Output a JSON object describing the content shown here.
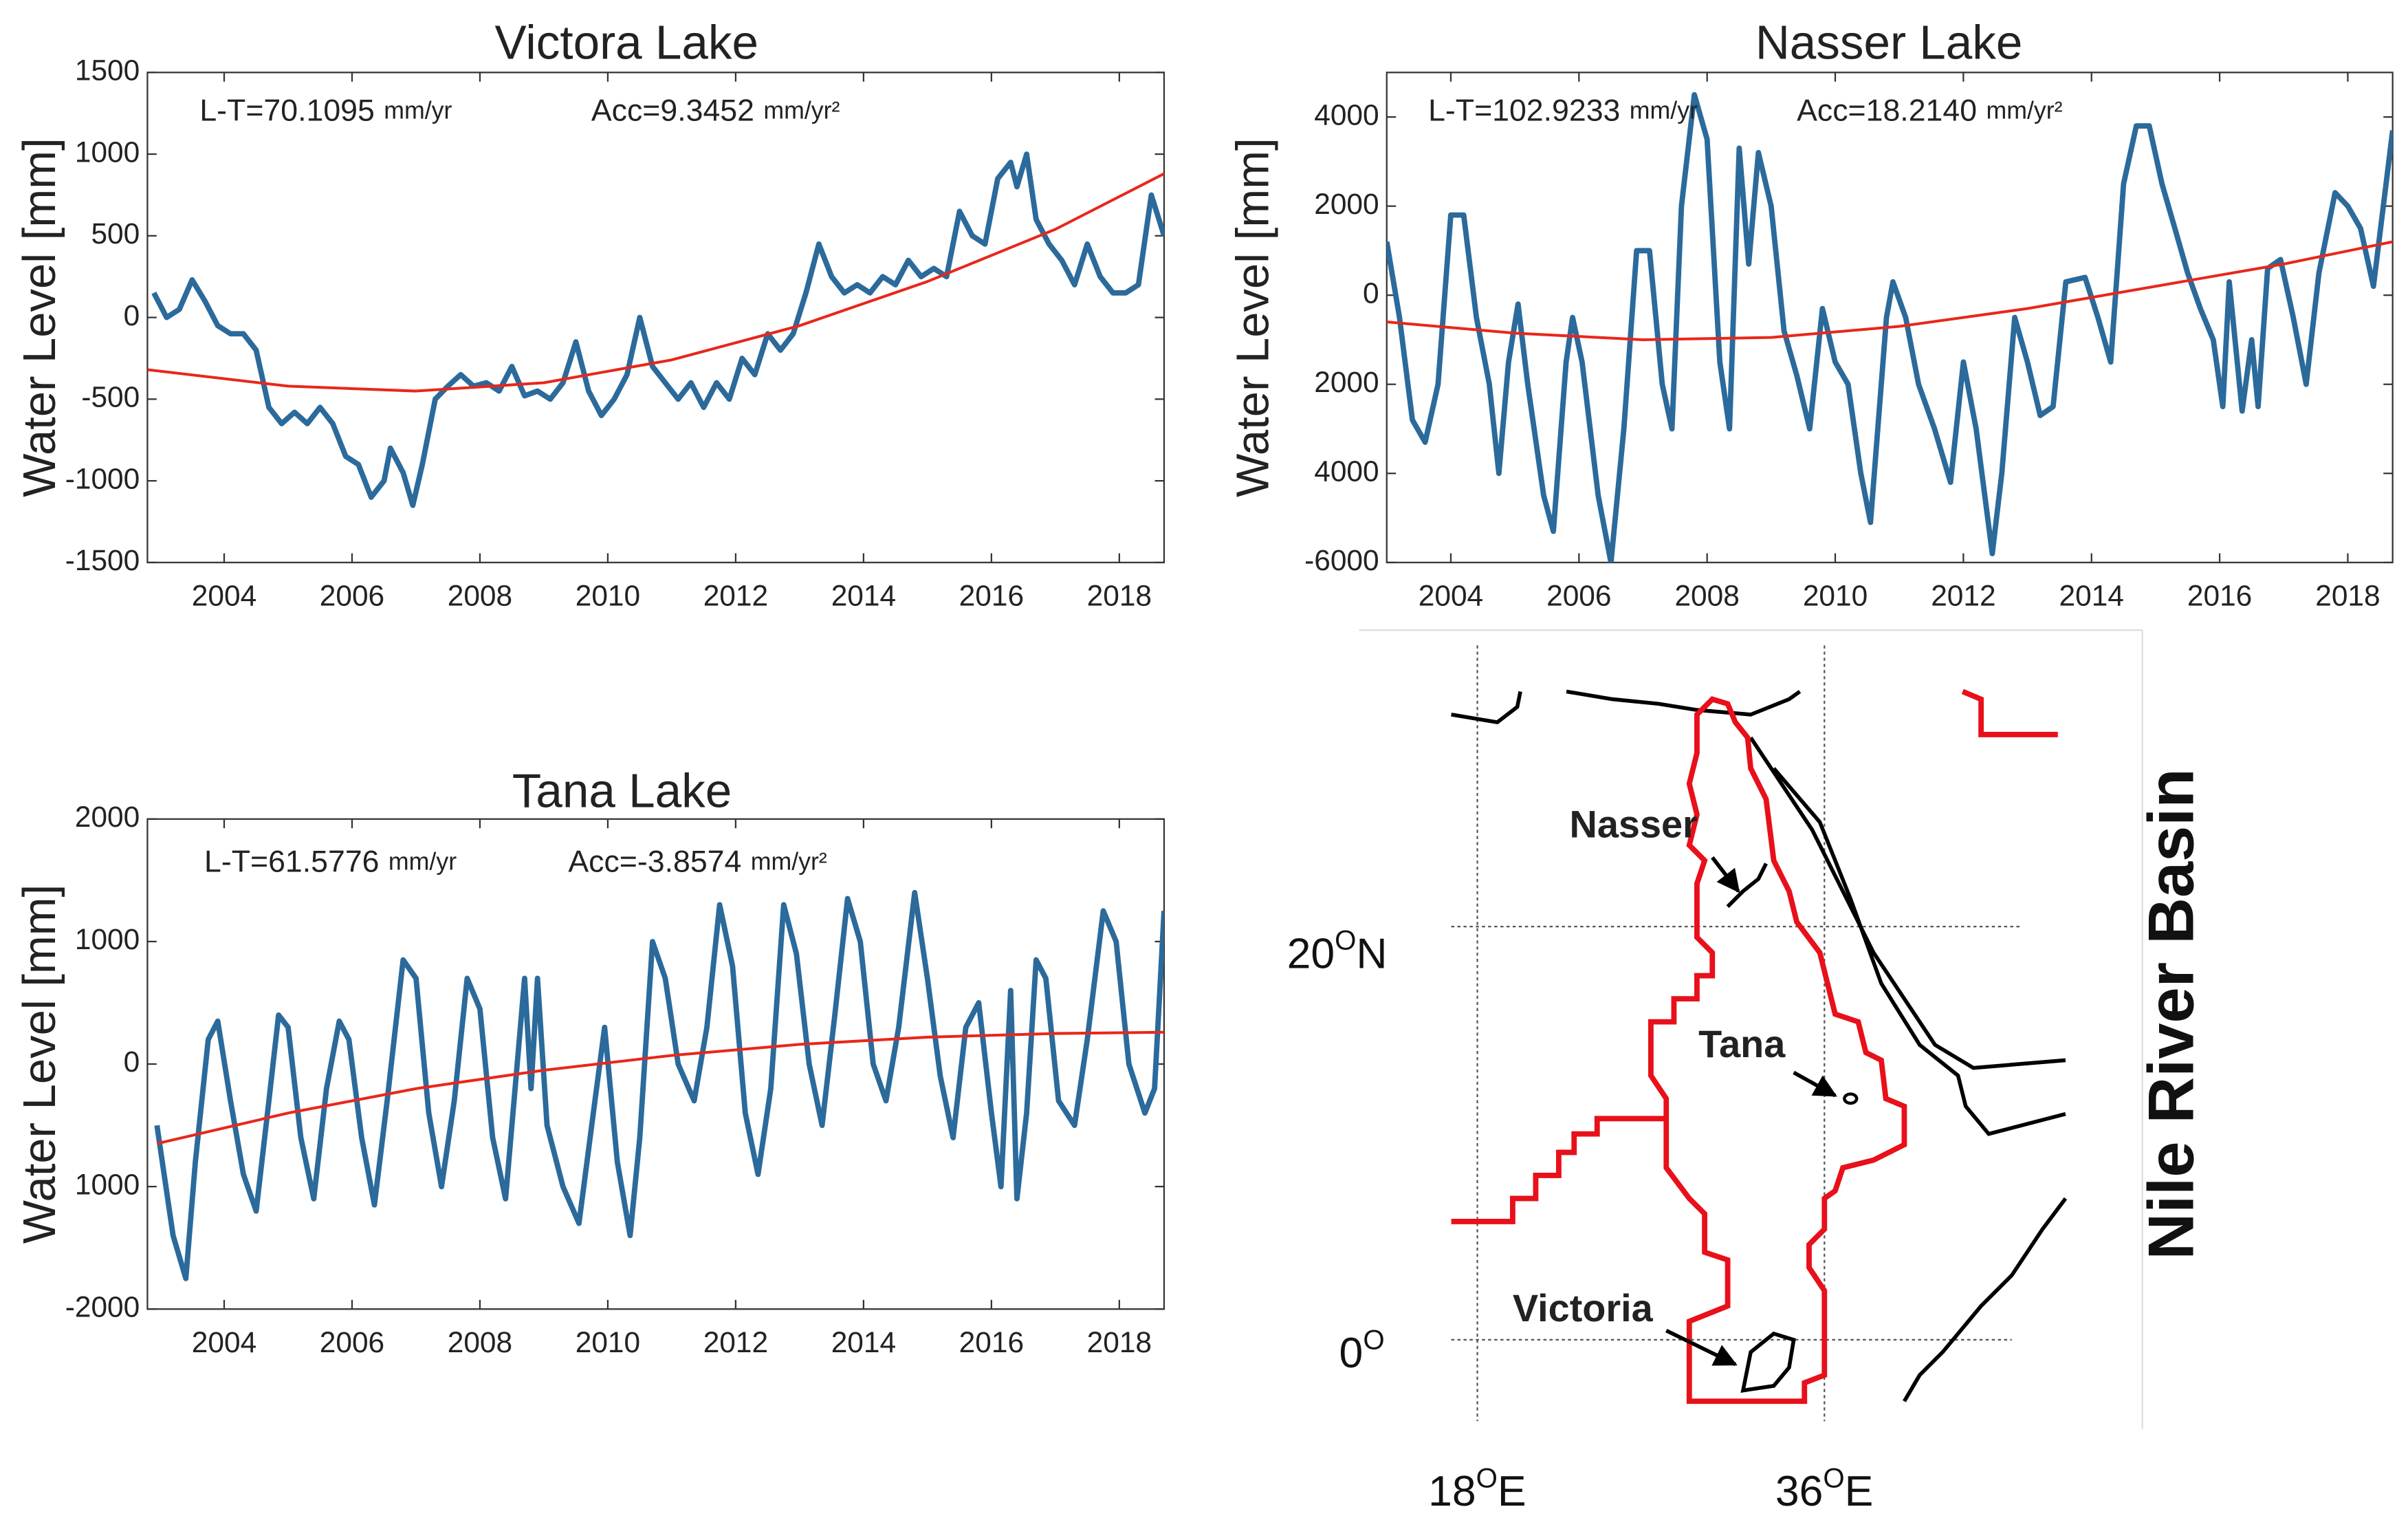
{
  "chart_data": [
    {
      "type": "line",
      "title": "Victora Lake",
      "ylabel": "Water Level [mm]",
      "annotations": [
        {
          "text": "L-T=70.1095",
          "unit": "mm/yr"
        },
        {
          "text": "Acc=9.3452",
          "unit": "mm/yr²"
        }
      ],
      "xlim": [
        2002.8,
        2018.7
      ],
      "xticks": [
        2004,
        2006,
        2008,
        2010,
        2012,
        2014,
        2016,
        2018
      ],
      "ylim": [
        -1500,
        1500
      ],
      "yticks": [
        -1500,
        -1000,
        -500,
        0,
        500,
        1000,
        1500
      ],
      "grid": false,
      "series": [
        {
          "color": "#2b6a9b",
          "x": [
            2002.9,
            2003.1,
            2003.3,
            2003.5,
            2003.7,
            2003.9,
            2004.1,
            2004.3,
            2004.5,
            2004.7,
            2004.9,
            2005.1,
            2005.3,
            2005.5,
            2005.7,
            2005.9,
            2006.1,
            2006.3,
            2006.5,
            2006.6,
            2006.8,
            2006.95,
            2007.1,
            2007.3,
            2007.5,
            2007.7,
            2007.9,
            2008.1,
            2008.3,
            2008.5,
            2008.7,
            2008.9,
            2009.1,
            2009.3,
            2009.5,
            2009.7,
            2009.9,
            2010.1,
            2010.3,
            2010.5,
            2010.7,
            2010.9,
            2011.1,
            2011.3,
            2011.5,
            2011.7,
            2011.9,
            2012.1,
            2012.3,
            2012.5,
            2012.7,
            2012.9,
            2013.1,
            2013.3,
            2013.5,
            2013.7,
            2013.9,
            2014.1,
            2014.3,
            2014.5,
            2014.7,
            2014.9,
            2015.1,
            2015.3,
            2015.5,
            2015.7,
            2015.9,
            2016.1,
            2016.3,
            2016.4,
            2016.55,
            2016.7,
            2016.9,
            2017.1,
            2017.3,
            2017.5,
            2017.7,
            2017.9,
            2018.1,
            2018.3,
            2018.5,
            2018.7
          ],
          "values": [
            150,
            0,
            50,
            230,
            100,
            -50,
            -100,
            -100,
            -200,
            -550,
            -650,
            -580,
            -650,
            -550,
            -650,
            -850,
            -900,
            -1100,
            -1000,
            -800,
            -950,
            -1150,
            -900,
            -500,
            -420,
            -350,
            -420,
            -400,
            -450,
            -300,
            -480,
            -450,
            -500,
            -400,
            -150,
            -450,
            -600,
            -500,
            -350,
            0,
            -300,
            -400,
            -500,
            -400,
            -550,
            -400,
            -500,
            -250,
            -350,
            -100,
            -200,
            -100,
            150,
            450,
            250,
            150,
            200,
            150,
            250,
            200,
            350,
            250,
            300,
            250,
            650,
            500,
            450,
            850,
            950,
            800,
            1000,
            600,
            450,
            350,
            200,
            450,
            250,
            150,
            150,
            200,
            750,
            500
          ]
        },
        {
          "color": "#e8271b",
          "x": [
            2002.8,
            2005,
            2007,
            2009,
            2011,
            2013,
            2015,
            2017,
            2018.7
          ],
          "values": [
            -320,
            -420,
            -450,
            -400,
            -260,
            -50,
            220,
            540,
            880
          ]
        }
      ]
    },
    {
      "type": "line",
      "title": "Nasser Lake",
      "ylabel": "Water Level [mm]",
      "annotations": [
        {
          "text": "L-T=102.9233",
          "unit": "mm/yr"
        },
        {
          "text": "Acc=18.2140",
          "unit": "mm/yr²"
        }
      ],
      "xlim": [
        2003,
        2018.7
      ],
      "xticks": [
        2004,
        2006,
        2008,
        2010,
        2012,
        2014,
        2016,
        2018
      ],
      "ylim": [
        -6000,
        5000
      ],
      "yticks": [
        -6000,
        {
          "value": -4000,
          "label": "4000"
        },
        {
          "value": -2000,
          "label": "2000"
        },
        0,
        2000,
        4000
      ],
      "grid": false,
      "series": [
        {
          "color": "#2b6a9b",
          "x": [
            2003.0,
            2003.2,
            2003.4,
            2003.6,
            2003.8,
            2004.0,
            2004.2,
            2004.4,
            2004.6,
            2004.75,
            2004.9,
            2005.05,
            2005.2,
            2005.45,
            2005.6,
            2005.8,
            2005.9,
            2006.05,
            2006.3,
            2006.5,
            2006.7,
            2006.9,
            2007.1,
            2007.3,
            2007.45,
            2007.6,
            2007.8,
            2008.0,
            2008.2,
            2008.35,
            2008.5,
            2008.65,
            2008.8,
            2009.0,
            2009.2,
            2009.4,
            2009.6,
            2009.8,
            2010.0,
            2010.2,
            2010.4,
            2010.55,
            2010.8,
            2010.9,
            2011.1,
            2011.3,
            2011.55,
            2011.8,
            2012.0,
            2012.2,
            2012.45,
            2012.6,
            2012.8,
            2013.0,
            2013.2,
            2013.4,
            2013.6,
            2013.9,
            2014.1,
            2014.3,
            2014.5,
            2014.7,
            2014.9,
            2015.1,
            2015.3,
            2015.5,
            2015.7,
            2015.9,
            2016.05,
            2016.15,
            2016.35,
            2016.5,
            2016.6,
            2016.75,
            2016.95,
            2017.15,
            2017.35,
            2017.55,
            2017.8,
            2018.0,
            2018.2,
            2018.4,
            2018.7
          ],
          "values": [
            1200,
            -500,
            -2800,
            -3300,
            -2000,
            1800,
            1800,
            -500,
            -2000,
            -4000,
            -1500,
            -200,
            -2000,
            -4500,
            -5300,
            -1500,
            -500,
            -1500,
            -4500,
            -6000,
            -3000,
            1000,
            1000,
            -2000,
            -3000,
            2000,
            4500,
            3500,
            -1500,
            -3000,
            3300,
            700,
            3200,
            2000,
            -800,
            -1800,
            -3000,
            -300,
            -1500,
            -2000,
            -4000,
            -5100,
            -500,
            300,
            -500,
            -2000,
            -3000,
            -4200,
            -1500,
            -3000,
            -5800,
            -4000,
            -500,
            -1500,
            -2700,
            -2500,
            300,
            400,
            -500,
            -1500,
            2500,
            3800,
            3800,
            2500,
            1500,
            500,
            -300,
            -1000,
            -2500,
            300,
            -2600,
            -1000,
            -2500,
            600,
            800,
            -500,
            -2000,
            500,
            2300,
            2000,
            1500,
            200,
            3700
          ]
        },
        {
          "color": "#e8271b",
          "x": [
            2003,
            2005,
            2007,
            2009,
            2011,
            2013,
            2015,
            2017,
            2018.7
          ],
          "values": [
            -600,
            -850,
            -1000,
            -950,
            -700,
            -300,
            200,
            700,
            1200
          ]
        }
      ]
    },
    {
      "type": "line",
      "title": "Tana Lake",
      "ylabel": "Water Level [mm]",
      "annotations": [
        {
          "text": "L-T=61.5776",
          "unit": "mm/yr"
        },
        {
          "text": "Acc=-3.8574",
          "unit": "mm/yr²"
        }
      ],
      "xlim": [
        2002.8,
        2018.7
      ],
      "xticks": [
        2004,
        2006,
        2008,
        2010,
        2012,
        2014,
        2016,
        2018
      ],
      "ylim": [
        -2000,
        2000
      ],
      "yticks": [
        -2000,
        {
          "value": -1000,
          "label": "1000"
        },
        0,
        1000,
        2000
      ],
      "grid": false,
      "series": [
        {
          "color": "#2b6a9b",
          "x": [
            2002.95,
            2003.2,
            2003.4,
            2003.55,
            2003.75,
            2003.9,
            2004.1,
            2004.3,
            2004.5,
            2004.7,
            2004.85,
            2005.0,
            2005.2,
            2005.4,
            2005.6,
            2005.8,
            2005.95,
            2006.15,
            2006.35,
            2006.55,
            2006.8,
            2007.0,
            2007.2,
            2007.4,
            2007.6,
            2007.8,
            2008.0,
            2008.2,
            2008.4,
            2008.55,
            2008.7,
            2008.8,
            2008.9,
            2009.05,
            2009.3,
            2009.55,
            2009.8,
            2009.95,
            2010.15,
            2010.35,
            2010.5,
            2010.7,
            2010.9,
            2011.1,
            2011.35,
            2011.55,
            2011.75,
            2011.95,
            2012.15,
            2012.35,
            2012.55,
            2012.75,
            2012.95,
            2013.15,
            2013.35,
            2013.55,
            2013.75,
            2013.95,
            2014.15,
            2014.35,
            2014.55,
            2014.8,
            2015.0,
            2015.2,
            2015.4,
            2015.6,
            2015.8,
            2016.0,
            2016.15,
            2016.3,
            2016.4,
            2016.55,
            2016.7,
            2016.85,
            2017.05,
            2017.3,
            2017.5,
            2017.75,
            2017.95,
            2018.15,
            2018.4,
            2018.55,
            2018.7
          ],
          "values": [
            -500,
            -1400,
            -1750,
            -800,
            200,
            350,
            -300,
            -900,
            -1200,
            -300,
            400,
            300,
            -600,
            -1100,
            -200,
            350,
            200,
            -600,
            -1150,
            -300,
            850,
            700,
            -400,
            -1000,
            -300,
            700,
            450,
            -600,
            -1100,
            -200,
            700,
            -200,
            700,
            -500,
            -1000,
            -1300,
            -300,
            300,
            -800,
            -1400,
            -600,
            1000,
            700,
            0,
            -300,
            300,
            1300,
            800,
            -400,
            -900,
            -200,
            1300,
            900,
            0,
            -500,
            400,
            1350,
            1000,
            0,
            -300,
            300,
            1400,
            700,
            -100,
            -600,
            300,
            500,
            -400,
            -1000,
            600,
            -1100,
            -400,
            850,
            700,
            -300,
            -500,
            200,
            1250,
            1000,
            0,
            -400,
            -200,
            1250
          ]
        },
        {
          "color": "#e8271b",
          "x": [
            2002.95,
            2005,
            2007,
            2009,
            2011,
            2013,
            2015,
            2017,
            2018.7
          ],
          "values": [
            -650,
            -400,
            -200,
            -50,
            70,
            160,
            220,
            250,
            260
          ]
        }
      ]
    }
  ],
  "map": {
    "title": "Nile River Basin",
    "lakes": {
      "nasser": "Nasser",
      "tana": "Tana",
      "victoria": "Victoria"
    },
    "lat_labels": [
      {
        "num": "20",
        "sup": "O",
        "hem": "N"
      },
      {
        "num": "0",
        "sup": "O"
      }
    ],
    "lon_labels": [
      {
        "num": "18",
        "sup": "O",
        "hem": "E"
      },
      {
        "num": "36",
        "sup": "O",
        "hem": "E"
      }
    ]
  }
}
